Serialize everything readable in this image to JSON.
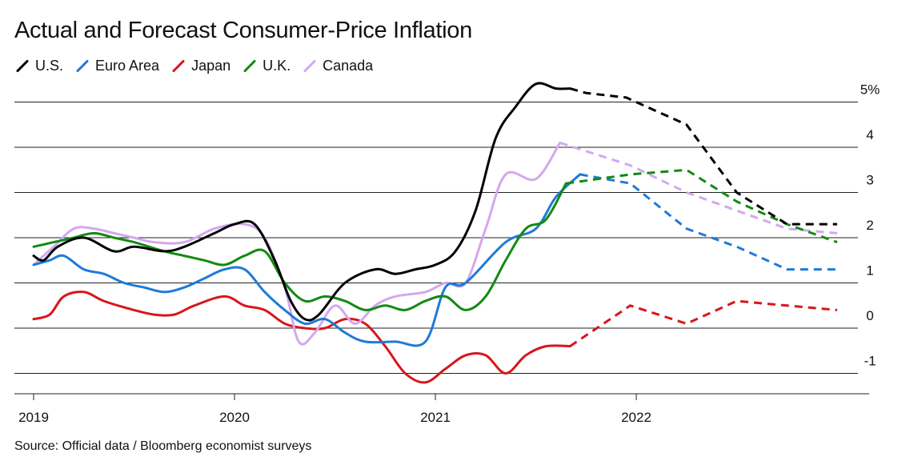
{
  "title": "Actual and Forecast Consumer-Price Inflation",
  "source": "Source: Official data / Bloomberg economist surveys",
  "chart_data": {
    "type": "line",
    "title": "Actual and Forecast Consumer-Price Inflation",
    "xlabel": "",
    "ylabel": "",
    "xlim": [
      2019.0,
      2023.0
    ],
    "ylim": [
      -1.5,
      5.5
    ],
    "x_ticks": [
      {
        "value": 2019,
        "label": "2019"
      },
      {
        "value": 2020,
        "label": "2020"
      },
      {
        "value": 2021,
        "label": "2021"
      },
      {
        "value": 2022,
        "label": "2022"
      }
    ],
    "y_ticks": [
      {
        "value": 5,
        "label": "5%"
      },
      {
        "value": 4,
        "label": "4"
      },
      {
        "value": 3,
        "label": "3"
      },
      {
        "value": 2,
        "label": "2"
      },
      {
        "value": 1,
        "label": "1"
      },
      {
        "value": 0,
        "label": "0"
      },
      {
        "value": -1,
        "label": "-1"
      }
    ],
    "grid": true,
    "legend_position": "top-left",
    "series": [
      {
        "name": "U.S.",
        "color": "#000000",
        "actual": [
          [
            2019.0,
            1.6
          ],
          [
            2019.05,
            1.5
          ],
          [
            2019.12,
            1.8
          ],
          [
            2019.25,
            2.0
          ],
          [
            2019.4,
            1.7
          ],
          [
            2019.5,
            1.8
          ],
          [
            2019.65,
            1.7
          ],
          [
            2019.75,
            1.8
          ],
          [
            2019.9,
            2.1
          ],
          [
            2020.0,
            2.3
          ],
          [
            2020.1,
            2.3
          ],
          [
            2020.2,
            1.5
          ],
          [
            2020.28,
            0.6
          ],
          [
            2020.35,
            0.2
          ],
          [
            2020.42,
            0.3
          ],
          [
            2020.55,
            1.0
          ],
          [
            2020.7,
            1.3
          ],
          [
            2020.8,
            1.2
          ],
          [
            2020.9,
            1.3
          ],
          [
            2021.0,
            1.4
          ],
          [
            2021.1,
            1.7
          ],
          [
            2021.2,
            2.6
          ],
          [
            2021.3,
            4.2
          ],
          [
            2021.4,
            4.9
          ],
          [
            2021.5,
            5.4
          ],
          [
            2021.6,
            5.3
          ],
          [
            2021.67,
            5.3
          ]
        ],
        "forecast": [
          [
            2021.67,
            5.3
          ],
          [
            2021.75,
            5.2
          ],
          [
            2021.95,
            5.1
          ],
          [
            2022.25,
            4.5
          ],
          [
            2022.5,
            3.0
          ],
          [
            2022.75,
            2.3
          ],
          [
            2023.0,
            2.3
          ]
        ]
      },
      {
        "name": "Euro Area",
        "color": "#1f7ad8",
        "actual": [
          [
            2019.0,
            1.4
          ],
          [
            2019.08,
            1.5
          ],
          [
            2019.15,
            1.6
          ],
          [
            2019.25,
            1.3
          ],
          [
            2019.35,
            1.2
          ],
          [
            2019.45,
            1.0
          ],
          [
            2019.55,
            0.9
          ],
          [
            2019.65,
            0.8
          ],
          [
            2019.75,
            0.9
          ],
          [
            2019.85,
            1.1
          ],
          [
            2019.95,
            1.3
          ],
          [
            2020.05,
            1.3
          ],
          [
            2020.15,
            0.8
          ],
          [
            2020.25,
            0.4
          ],
          [
            2020.35,
            0.1
          ],
          [
            2020.45,
            0.2
          ],
          [
            2020.55,
            -0.1
          ],
          [
            2020.65,
            -0.3
          ],
          [
            2020.8,
            -0.3
          ],
          [
            2020.95,
            -0.3
          ],
          [
            2021.05,
            0.9
          ],
          [
            2021.15,
            1.0
          ],
          [
            2021.35,
            1.9
          ],
          [
            2021.5,
            2.2
          ],
          [
            2021.6,
            2.9
          ],
          [
            2021.72,
            3.4
          ]
        ],
        "forecast": [
          [
            2021.72,
            3.4
          ],
          [
            2021.97,
            3.2
          ],
          [
            2022.25,
            2.2
          ],
          [
            2022.5,
            1.8
          ],
          [
            2022.75,
            1.3
          ],
          [
            2023.0,
            1.3
          ]
        ]
      },
      {
        "name": "Japan",
        "color": "#d8161b",
        "actual": [
          [
            2019.0,
            0.2
          ],
          [
            2019.08,
            0.3
          ],
          [
            2019.15,
            0.7
          ],
          [
            2019.25,
            0.8
          ],
          [
            2019.35,
            0.6
          ],
          [
            2019.5,
            0.4
          ],
          [
            2019.6,
            0.3
          ],
          [
            2019.7,
            0.3
          ],
          [
            2019.8,
            0.5
          ],
          [
            2019.95,
            0.7
          ],
          [
            2020.05,
            0.5
          ],
          [
            2020.15,
            0.4
          ],
          [
            2020.25,
            0.1
          ],
          [
            2020.35,
            0.0
          ],
          [
            2020.45,
            0.0
          ],
          [
            2020.55,
            0.2
          ],
          [
            2020.65,
            0.1
          ],
          [
            2020.75,
            -0.4
          ],
          [
            2020.85,
            -1.0
          ],
          [
            2020.95,
            -1.2
          ],
          [
            2021.05,
            -0.9
          ],
          [
            2021.15,
            -0.6
          ],
          [
            2021.25,
            -0.6
          ],
          [
            2021.35,
            -1.0
          ],
          [
            2021.45,
            -0.6
          ],
          [
            2021.55,
            -0.4
          ],
          [
            2021.67,
            -0.4
          ]
        ],
        "forecast": [
          [
            2021.67,
            -0.4
          ],
          [
            2021.97,
            0.5
          ],
          [
            2022.25,
            0.1
          ],
          [
            2022.5,
            0.6
          ],
          [
            2022.75,
            0.5
          ],
          [
            2023.0,
            0.4
          ]
        ]
      },
      {
        "name": "U.K.",
        "color": "#128a12",
        "actual": [
          [
            2019.0,
            1.8
          ],
          [
            2019.1,
            1.9
          ],
          [
            2019.2,
            2.0
          ],
          [
            2019.3,
            2.1
          ],
          [
            2019.4,
            2.0
          ],
          [
            2019.5,
            1.9
          ],
          [
            2019.65,
            1.7
          ],
          [
            2019.75,
            1.6
          ],
          [
            2019.85,
            1.5
          ],
          [
            2019.95,
            1.4
          ],
          [
            2020.05,
            1.6
          ],
          [
            2020.15,
            1.7
          ],
          [
            2020.25,
            1.0
          ],
          [
            2020.35,
            0.6
          ],
          [
            2020.45,
            0.7
          ],
          [
            2020.55,
            0.6
          ],
          [
            2020.65,
            0.4
          ],
          [
            2020.75,
            0.5
          ],
          [
            2020.85,
            0.4
          ],
          [
            2020.95,
            0.6
          ],
          [
            2021.05,
            0.7
          ],
          [
            2021.15,
            0.4
          ],
          [
            2021.25,
            0.7
          ],
          [
            2021.35,
            1.5
          ],
          [
            2021.45,
            2.2
          ],
          [
            2021.55,
            2.4
          ],
          [
            2021.65,
            3.2
          ]
        ],
        "forecast": [
          [
            2021.65,
            3.2
          ],
          [
            2021.97,
            3.4
          ],
          [
            2022.25,
            3.5
          ],
          [
            2022.5,
            2.8
          ],
          [
            2022.75,
            2.3
          ],
          [
            2023.0,
            1.9
          ]
        ]
      },
      {
        "name": "Canada",
        "color": "#d3a8ee",
        "actual": [
          [
            2019.0,
            1.4
          ],
          [
            2019.1,
            1.8
          ],
          [
            2019.2,
            2.2
          ],
          [
            2019.3,
            2.2
          ],
          [
            2019.4,
            2.1
          ],
          [
            2019.5,
            2.0
          ],
          [
            2019.6,
            1.9
          ],
          [
            2019.75,
            1.9
          ],
          [
            2019.9,
            2.2
          ],
          [
            2020.05,
            2.3
          ],
          [
            2020.15,
            2.0
          ],
          [
            2020.25,
            0.9
          ],
          [
            2020.32,
            -0.3
          ],
          [
            2020.4,
            -0.1
          ],
          [
            2020.5,
            0.5
          ],
          [
            2020.6,
            0.1
          ],
          [
            2020.7,
            0.5
          ],
          [
            2020.8,
            0.7
          ],
          [
            2020.95,
            0.8
          ],
          [
            2021.05,
            1.0
          ],
          [
            2021.15,
            1.0
          ],
          [
            2021.25,
            2.2
          ],
          [
            2021.35,
            3.4
          ],
          [
            2021.5,
            3.3
          ],
          [
            2021.62,
            4.1
          ]
        ],
        "forecast": [
          [
            2021.62,
            4.1
          ],
          [
            2021.97,
            3.6
          ],
          [
            2022.25,
            3.0
          ],
          [
            2022.5,
            2.6
          ],
          [
            2022.75,
            2.2
          ],
          [
            2023.0,
            2.1
          ]
        ]
      }
    ]
  }
}
